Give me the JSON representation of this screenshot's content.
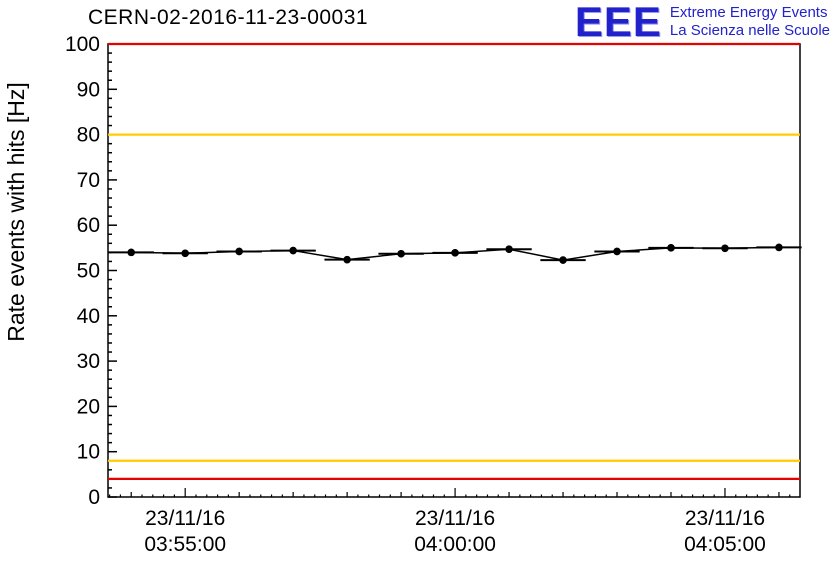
{
  "header": {
    "title": "CERN-02-2016-11-23-00031",
    "logo": {
      "text": "EEE",
      "line1": "Extreme Energy Events",
      "line2": "La Scienza nelle Scuole",
      "color": "#2222cc"
    }
  },
  "chart_data": {
    "type": "line",
    "title": "CERN-02-2016-11-23-00031",
    "ylabel": "Rate events with hits [Hz]",
    "xlabel": "",
    "ylim": [
      0,
      100
    ],
    "y_major_step": 10,
    "y_minor_step": 2,
    "xlim_minutes": [
      -1.43,
      11.39
    ],
    "x_tick_minutes": [
      0,
      5,
      10
    ],
    "x_minor_step_minutes": 1,
    "x_subminor_step_minutes": 0.2,
    "x_tick_labels": [
      [
        "23/11/16",
        "03:55:00"
      ],
      [
        "23/11/16",
        "04:00:00"
      ],
      [
        "23/11/16",
        "04:05:00"
      ]
    ],
    "grid": false,
    "legend": "none",
    "series": [
      {
        "name": "rate-events-with-hits",
        "color": "#000000",
        "marker": "circle",
        "x_minutes": [
          -1,
          0,
          1,
          2,
          3,
          4,
          5,
          6,
          7,
          8,
          9,
          10,
          11
        ],
        "times": [
          "03:54:00",
          "03:55:00",
          "03:56:00",
          "03:57:00",
          "03:58:00",
          "03:59:00",
          "04:00:00",
          "04:01:00",
          "04:02:00",
          "04:03:00",
          "04:04:00",
          "04:05:00",
          "04:06:00"
        ],
        "values": [
          54.0,
          53.8,
          54.2,
          54.4,
          52.4,
          53.7,
          53.9,
          54.7,
          52.3,
          54.2,
          55.0,
          54.9,
          55.1
        ],
        "x_err_minutes": 0.42,
        "y_err": 0.8
      }
    ],
    "reference_lines": [
      {
        "y": 100,
        "color": "#e60000",
        "meaning": "upper-alarm"
      },
      {
        "y": 80,
        "color": "#ffcc00",
        "meaning": "upper-warning"
      },
      {
        "y": 8,
        "color": "#ffcc00",
        "meaning": "lower-warning"
      },
      {
        "y": 4,
        "color": "#e60000",
        "meaning": "lower-alarm"
      }
    ]
  }
}
